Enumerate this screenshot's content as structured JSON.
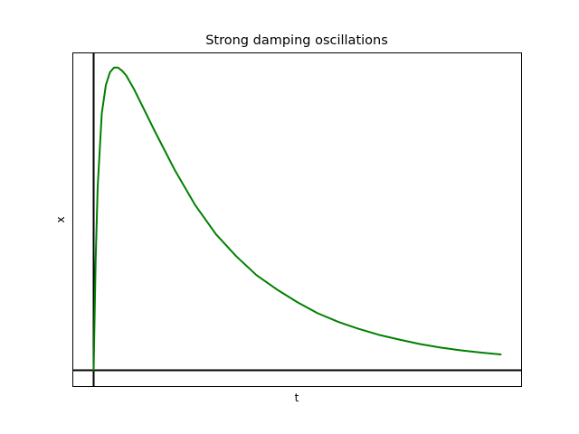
{
  "chart_data": {
    "type": "line",
    "title": "Strong damping oscillations",
    "xlabel": "t",
    "ylabel": "x",
    "grid": false,
    "xlim": [
      -0.5,
      10.5
    ],
    "ylim": [
      -0.05,
      1.0
    ],
    "ticks_visible": false,
    "reference_lines": {
      "horizontal_y": 0,
      "vertical_x": 0
    },
    "series": [
      {
        "color": "#008000",
        "x": [
          0,
          0.05,
          0.1,
          0.2,
          0.3,
          0.4,
          0.5,
          0.6,
          0.7,
          0.8,
          1.0,
          1.25,
          1.5,
          2.0,
          2.5,
          3.0,
          3.5,
          4.0,
          4.5,
          5.0,
          5.5,
          6.0,
          6.5,
          7.0,
          7.5,
          8.0,
          8.5,
          9.0,
          9.5,
          10.0
        ],
        "y": [
          0,
          0.35,
          0.58,
          0.81,
          0.9,
          0.94,
          0.955,
          0.955,
          0.945,
          0.93,
          0.885,
          0.82,
          0.755,
          0.63,
          0.52,
          0.43,
          0.36,
          0.3,
          0.255,
          0.215,
          0.18,
          0.153,
          0.131,
          0.112,
          0.097,
          0.083,
          0.072,
          0.063,
          0.056,
          0.05
        ]
      }
    ]
  },
  "colors": {
    "axis": "#000000",
    "line": "#008000",
    "background": "#ffffff"
  }
}
